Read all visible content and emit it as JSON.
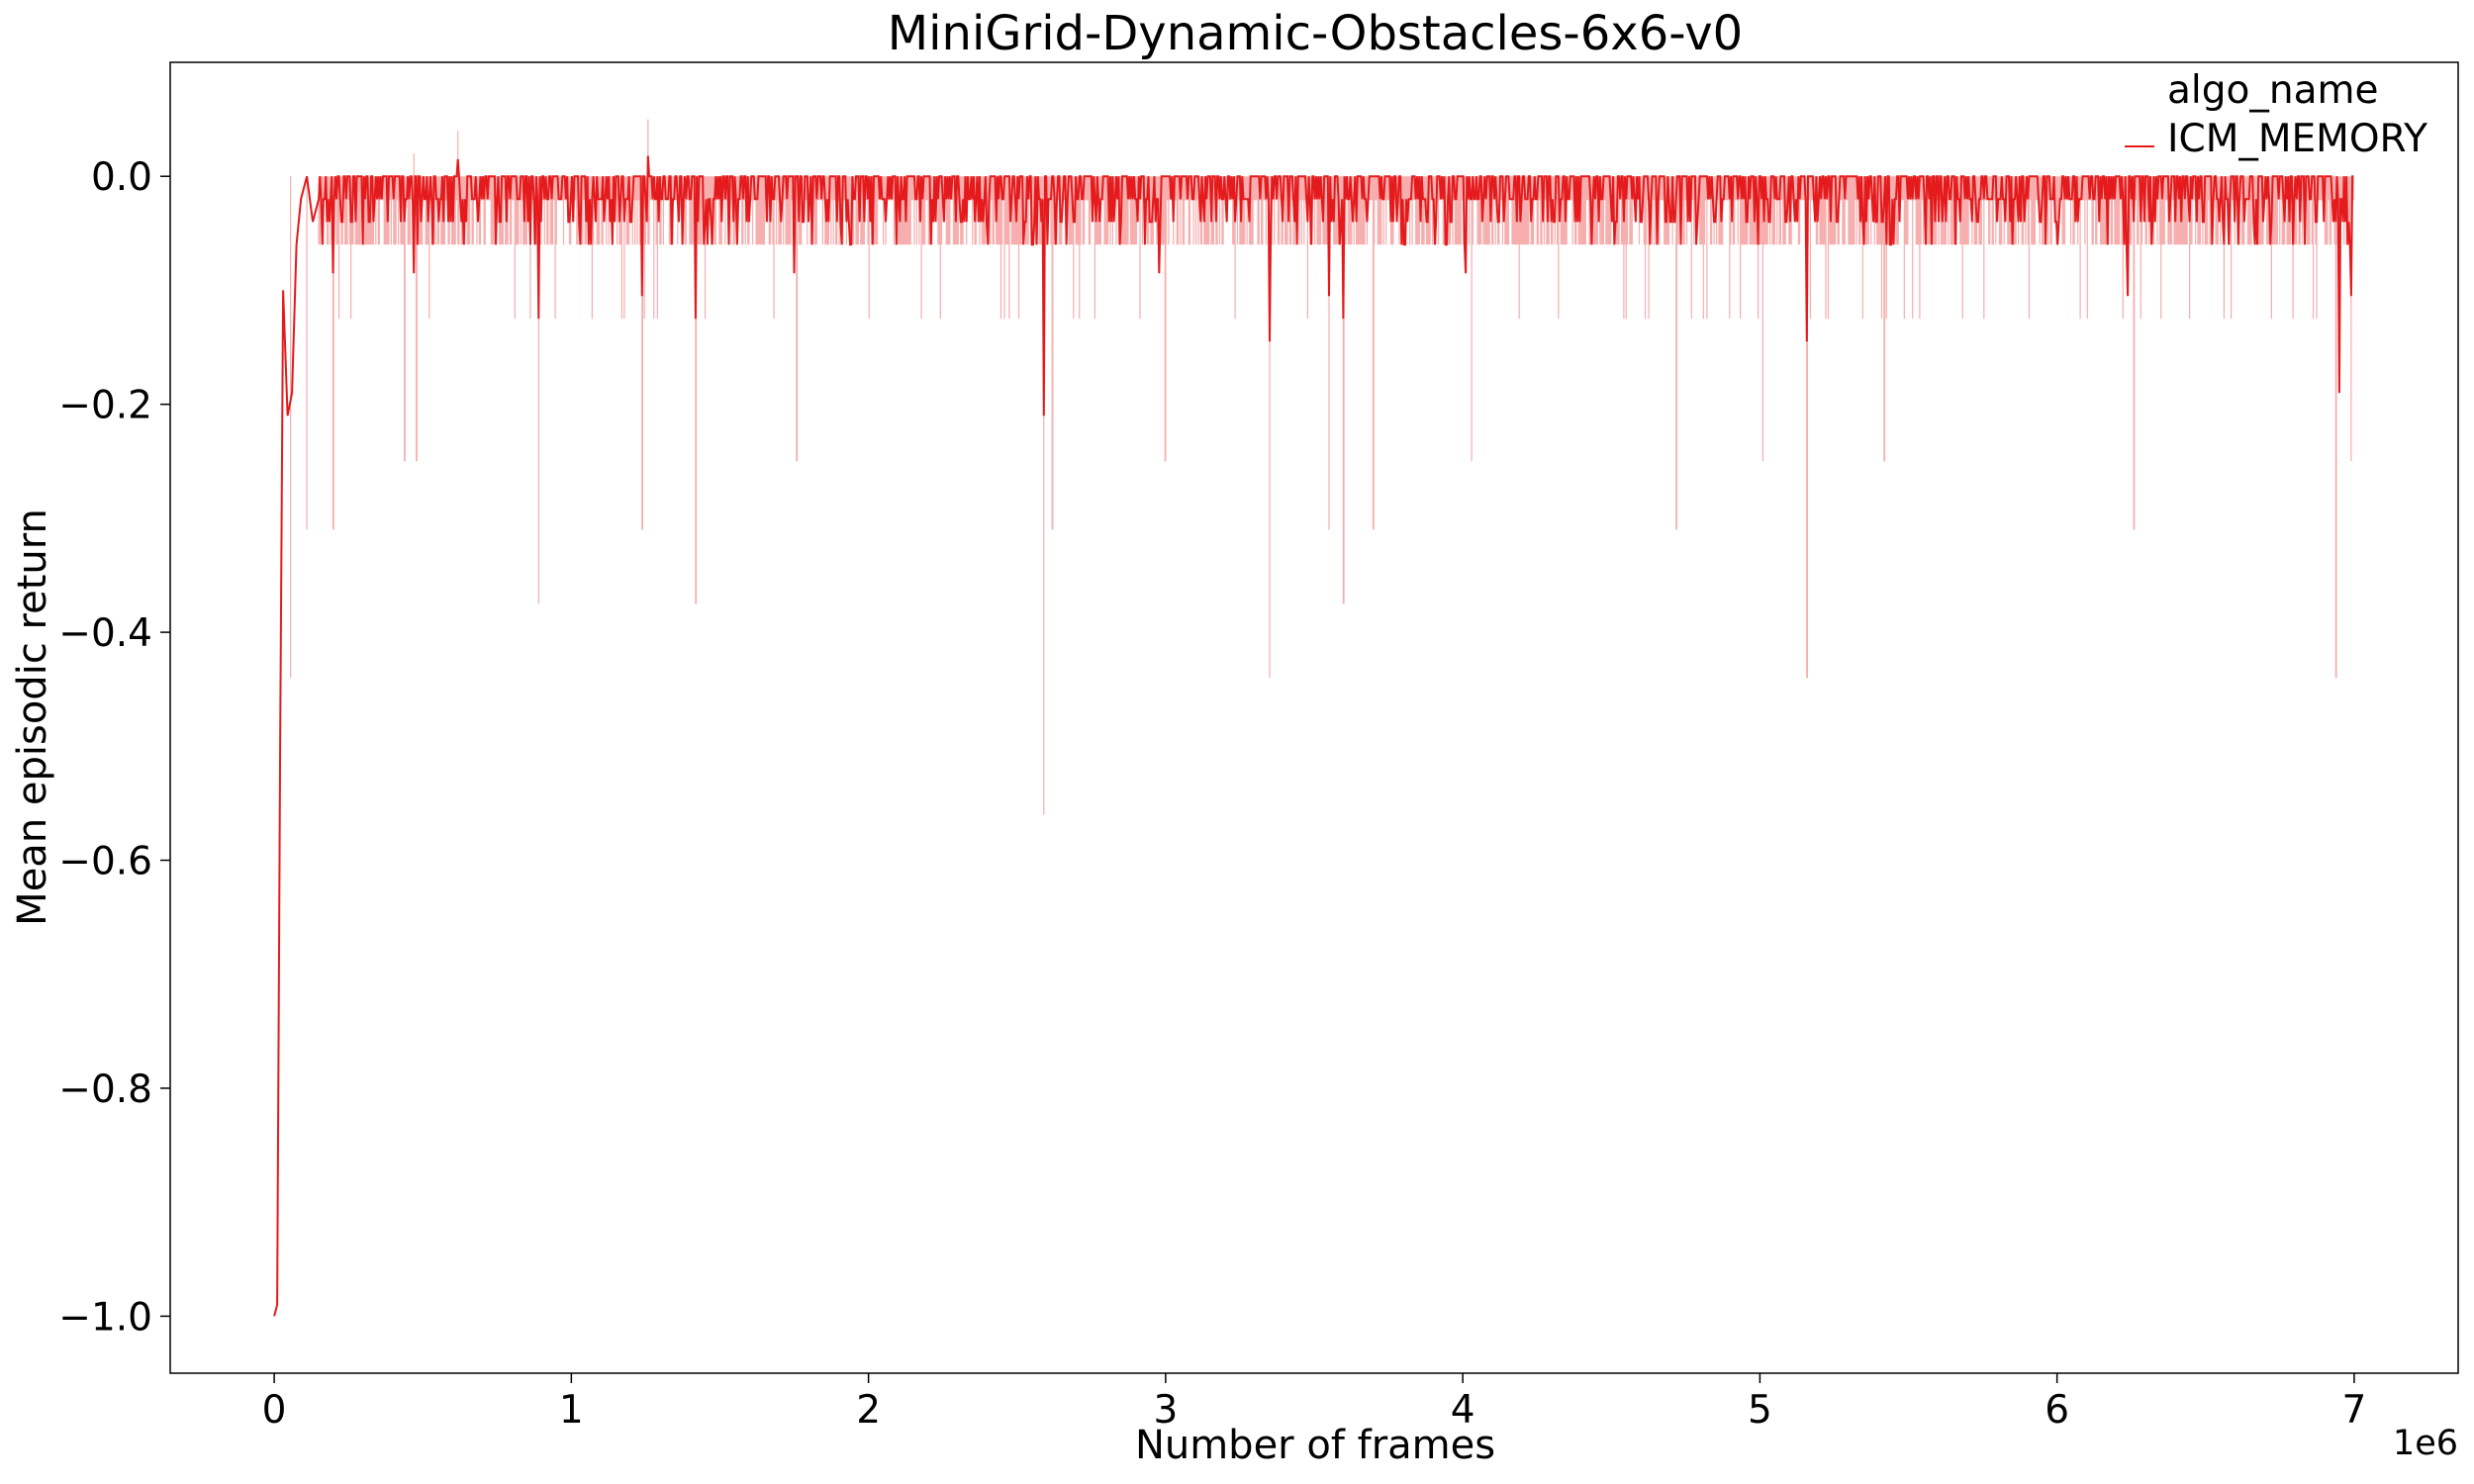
{
  "chart_data": {
    "type": "line",
    "title": "MiniGrid-Dynamic-Obstacles-6x6-v0",
    "xlabel": "Number of frames",
    "ylabel": "Mean episodic return",
    "x_offset_label": "1e6",
    "xlim": [
      -350000,
      7350000
    ],
    "ylim": [
      -1.05,
      0.1
    ],
    "xticks": [
      0,
      1000000,
      2000000,
      3000000,
      4000000,
      5000000,
      6000000,
      7000000
    ],
    "xtick_labels": [
      "0",
      "1",
      "2",
      "3",
      "4",
      "5",
      "6",
      "7"
    ],
    "yticks": [
      0.0,
      -0.2,
      -0.4,
      -0.6,
      -0.8,
      -1.0
    ],
    "ytick_labels": [
      "0.0",
      "−0.2",
      "−0.4",
      "−0.6",
      "−0.8",
      "−1.0"
    ],
    "grid": false,
    "legend": {
      "title": "algo_name",
      "position": "top-right"
    },
    "series": [
      {
        "name": "ICM_MEMORY",
        "color": "#e41a1c",
        "band_color": "#f4a0a0",
        "x_start": 0,
        "x_end": 7000000,
        "initial": [
          [
            0,
            -1.0
          ],
          [
            10000,
            -0.99
          ],
          [
            20000,
            -0.5
          ],
          [
            30000,
            -0.1
          ],
          [
            45000,
            -0.21
          ],
          [
            60000,
            -0.19
          ],
          [
            75000,
            -0.06
          ],
          [
            90000,
            -0.02
          ],
          [
            110000,
            0.0
          ],
          [
            130000,
            -0.04
          ]
        ],
        "typical_value": 0.0,
        "dip_values": [
          -0.02,
          -0.04,
          -0.06
        ],
        "deep_dips": [
          [
            40000,
            -0.105
          ],
          [
            55000,
            -0.21
          ],
          [
            65000,
            -0.19
          ],
          [
            200000,
            -0.085
          ],
          [
            470000,
            -0.085
          ],
          [
            890000,
            -0.125
          ],
          [
            1240000,
            -0.105
          ],
          [
            1420000,
            -0.125
          ],
          [
            1750000,
            -0.085
          ],
          [
            2590000,
            -0.21
          ],
          [
            2980000,
            -0.085
          ],
          [
            3350000,
            -0.145
          ],
          [
            3550000,
            -0.105
          ],
          [
            3600000,
            -0.125
          ],
          [
            4010000,
            -0.085
          ],
          [
            5160000,
            -0.145
          ],
          [
            6240000,
            -0.105
          ],
          [
            6950000,
            -0.19
          ],
          [
            6990000,
            -0.105
          ]
        ],
        "peaks": [
          [
            470000,
            0.01
          ],
          [
            620000,
            0.015
          ],
          [
            1260000,
            0.018
          ]
        ],
        "band_spikes": [
          [
            55000,
            -0.44
          ],
          [
            110000,
            -0.31
          ],
          [
            200000,
            -0.31
          ],
          [
            440000,
            -0.25
          ],
          [
            480000,
            -0.25
          ],
          [
            890000,
            -0.375
          ],
          [
            1240000,
            -0.31
          ],
          [
            1420000,
            -0.375
          ],
          [
            1760000,
            -0.25
          ],
          [
            2590000,
            -0.56
          ],
          [
            2620000,
            -0.31
          ],
          [
            3000000,
            -0.25
          ],
          [
            3350000,
            -0.44
          ],
          [
            3550000,
            -0.31
          ],
          [
            3600000,
            -0.375
          ],
          [
            3700000,
            -0.31
          ],
          [
            4030000,
            -0.25
          ],
          [
            4720000,
            -0.31
          ],
          [
            5010000,
            -0.25
          ],
          [
            5160000,
            -0.44
          ],
          [
            5420000,
            -0.25
          ],
          [
            6260000,
            -0.31
          ],
          [
            6940000,
            -0.44
          ],
          [
            6990000,
            -0.25
          ]
        ],
        "band_peaks": [
          [
            470000,
            0.02
          ],
          [
            620000,
            0.04
          ],
          [
            1260000,
            0.05
          ]
        ]
      }
    ]
  }
}
